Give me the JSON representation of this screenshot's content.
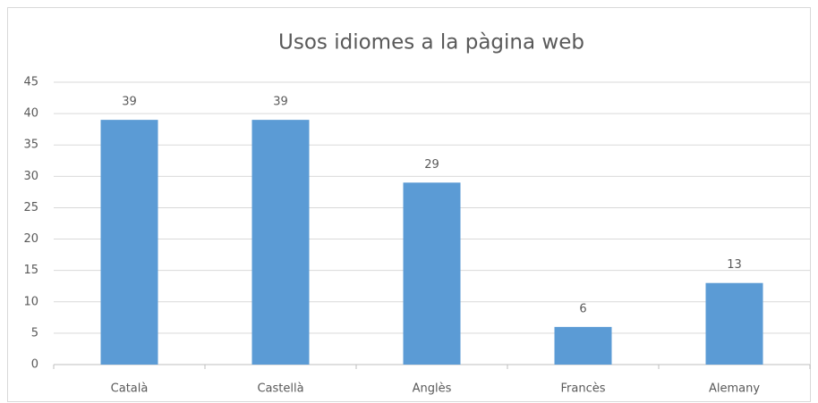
{
  "chart_data": {
    "type": "bar",
    "title": "Usos idiomes a la pàgina web",
    "categories": [
      "Català",
      "Castellà",
      "Anglès",
      "Francès",
      "Alemany"
    ],
    "values": [
      39,
      39,
      29,
      6,
      13
    ],
    "color": "#5b9bd5",
    "ylim": [
      0,
      45
    ],
    "yticks": [
      0,
      5,
      10,
      15,
      20,
      25,
      30,
      35,
      40,
      45
    ],
    "grid": true
  }
}
